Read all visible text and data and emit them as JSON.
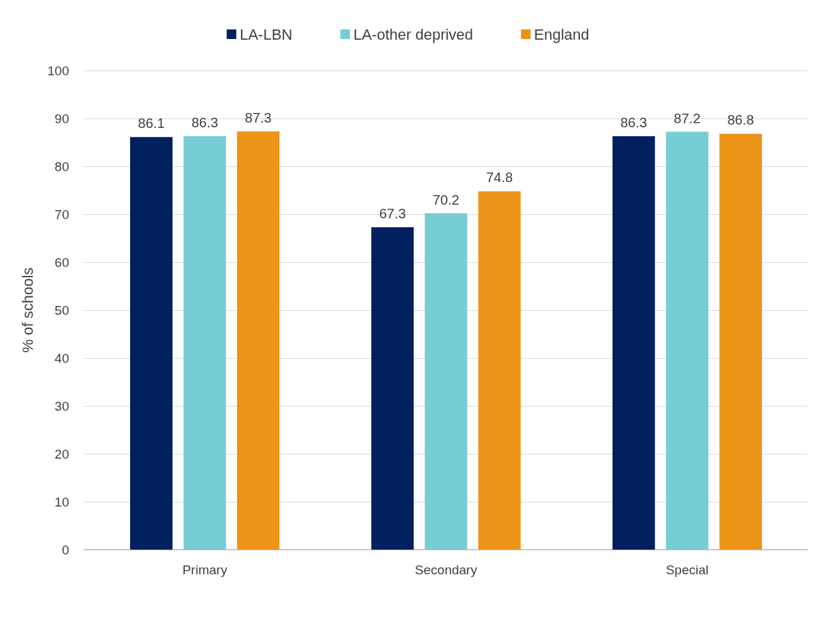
{
  "chart_data": {
    "type": "bar",
    "ylabel": "% of schools",
    "categories": [
      "Primary",
      "Secondary",
      "Special"
    ],
    "series": [
      {
        "name": "LA-LBN",
        "color": "#002060",
        "values": [
          86.1,
          67.3,
          86.3
        ]
      },
      {
        "name": "LA-other deprived",
        "color": "#76cdd5",
        "values": [
          86.3,
          70.2,
          87.2
        ]
      },
      {
        "name": "England",
        "color": "#ec9418",
        "values": [
          87.3,
          74.8,
          86.8
        ]
      }
    ],
    "ylim": [
      0,
      100
    ],
    "yticks": [
      0,
      10,
      20,
      30,
      40,
      50,
      60,
      70,
      80,
      90,
      100
    ],
    "grid": "y",
    "legend": "top",
    "data_labels": true
  }
}
